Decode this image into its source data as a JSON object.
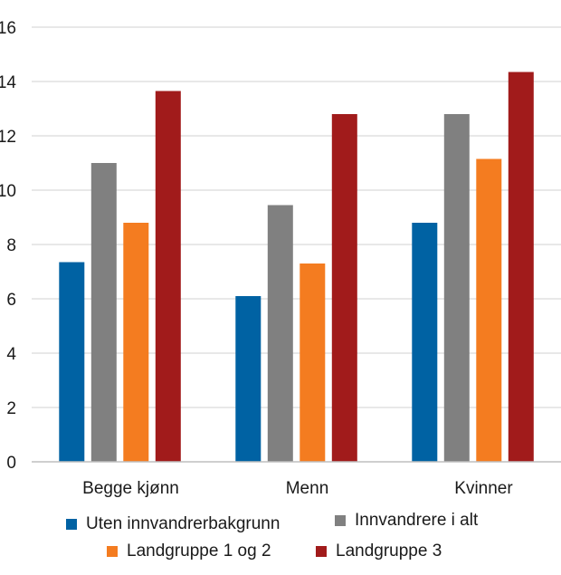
{
  "chart_data": {
    "type": "bar",
    "title": "",
    "xlabel": "",
    "ylabel": "",
    "ylim": [
      0,
      16
    ],
    "yticks": [
      "0",
      "2",
      "4",
      "6",
      "8",
      "10",
      "12",
      "14",
      "16"
    ],
    "grid": true,
    "legend_position": "bottom",
    "categories": [
      "Begge kjønn",
      "Menn",
      "Kvinner"
    ],
    "series": [
      {
        "name": "Uten innvandrerbakgrunn",
        "color": "#0062A3",
        "values": [
          7.35,
          6.1,
          8.8
        ]
      },
      {
        "name": "Innvandrere i alt",
        "color": "#808080",
        "values": [
          11.0,
          9.45,
          12.8
        ]
      },
      {
        "name": "Landgruppe 1 og 2",
        "color": "#F47C20",
        "values": [
          8.8,
          7.3,
          11.15
        ]
      },
      {
        "name": "Landgruppe 3",
        "color": "#A11B1B",
        "values": [
          13.65,
          12.8,
          14.35
        ]
      }
    ]
  }
}
